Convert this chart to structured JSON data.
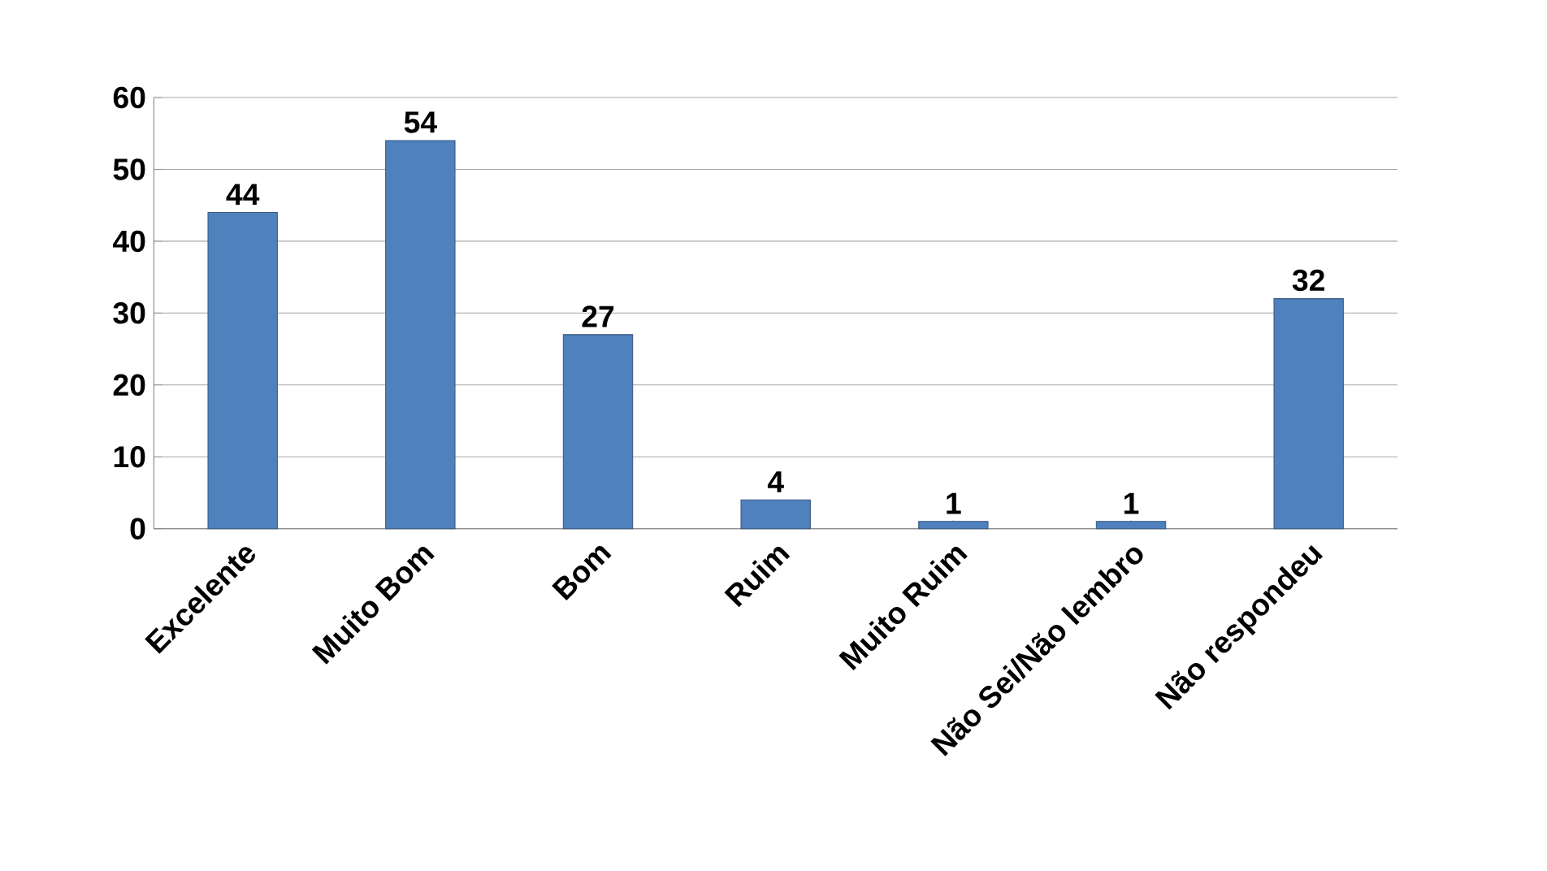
{
  "chart_data": {
    "type": "bar",
    "categories": [
      "Excelente",
      "Muito Bom",
      "Bom",
      "Ruim",
      "Muito Ruim",
      "Não Sei/Não lembro",
      "Não respondeu"
    ],
    "values": [
      44,
      54,
      27,
      4,
      1,
      1,
      32
    ],
    "color": "#4f81bd",
    "ylim": [
      0,
      60
    ],
    "yticks": [
      0,
      10,
      20,
      30,
      40,
      50,
      60
    ],
    "grid": "y",
    "data_labels": true
  }
}
